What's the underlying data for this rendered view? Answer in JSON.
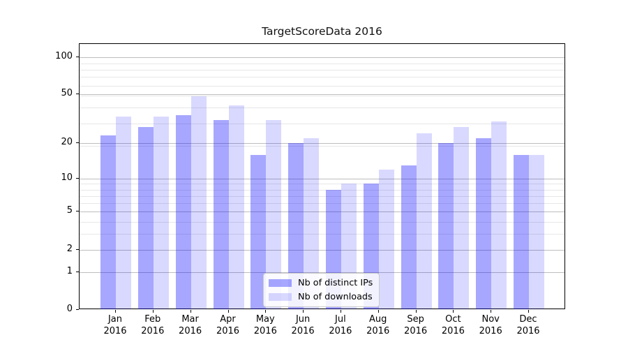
{
  "title": "TargetScoreData 2016",
  "legend": {
    "items": [
      {
        "label": "Nb of distinct IPs",
        "color": "rgba(0,0,255,0.345)"
      },
      {
        "label": "Nb of downloads",
        "color": "rgba(0,0,255,0.15)"
      }
    ]
  },
  "colors": {
    "bar_distinct_ips": "#a9a9f6",
    "bar_downloads": "#d9d9f9",
    "major_grid": "#bdbdbd",
    "minor_grid": "#e7e7e7",
    "axis": "#000000",
    "background": "#ffffff"
  },
  "chart_data": {
    "type": "bar",
    "title": "TargetScoreData 2016",
    "categories": [
      "Jan",
      "Feb",
      "Mar",
      "Apr",
      "May",
      "Jun",
      "Jul",
      "Aug",
      "Sep",
      "Oct",
      "Nov",
      "Dec"
    ],
    "year": "2016",
    "series": [
      {
        "name": "Nb of distinct IPs",
        "values": [
          23,
          27,
          34,
          31,
          16,
          20,
          8,
          9,
          13,
          20,
          22,
          16
        ]
      },
      {
        "name": "Nb of downloads",
        "values": [
          33,
          33,
          48,
          41,
          31,
          22,
          9,
          12,
          24,
          27,
          30,
          16
        ]
      }
    ],
    "xlabel": "",
    "ylabel": "",
    "yscale": "log1p",
    "yticks": [
      0,
      1,
      2,
      5,
      10,
      20,
      50,
      100
    ],
    "minor_yticks": [
      3,
      4,
      6,
      7,
      8,
      9,
      19,
      29,
      39,
      49,
      59,
      69,
      79,
      89,
      99
    ],
    "ylim": [
      0,
      127
    ],
    "grid": "both",
    "legend_position": "lower center"
  }
}
